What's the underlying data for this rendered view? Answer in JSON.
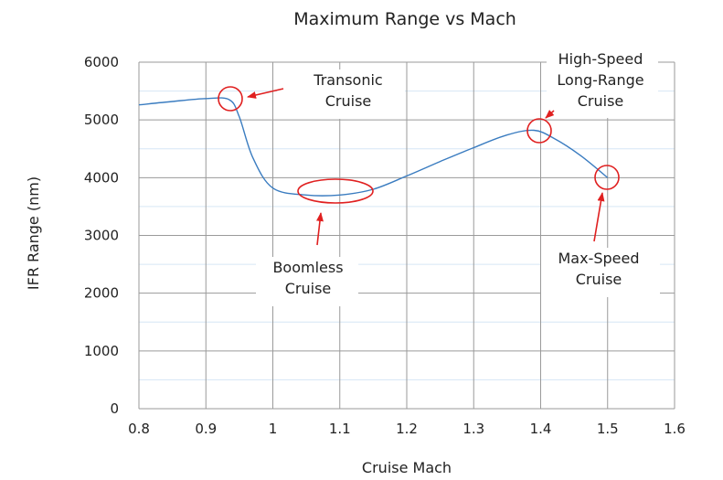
{
  "chart_data": {
    "type": "line",
    "title": "Maximum Range vs Mach",
    "xlabel": "Cruise Mach",
    "ylabel": "IFR Range (nm)",
    "xlim": [
      0.8,
      1.6
    ],
    "ylim": [
      0,
      6000
    ],
    "x_ticks": [
      "0.8",
      "0.9",
      "1",
      "1.1",
      "1.2",
      "1.3",
      "1.4",
      "1.5",
      "1.6"
    ],
    "y_ticks": [
      "0",
      "1000",
      "2000",
      "3000",
      "4000",
      "5000",
      "6000"
    ],
    "grid": true,
    "series": [
      {
        "color": "#3a7cc0",
        "x": [
          0.8,
          0.85,
          0.9,
          0.935,
          0.95,
          0.97,
          1.0,
          1.05,
          1.1,
          1.15,
          1.2,
          1.25,
          1.3,
          1.35,
          1.39,
          1.42,
          1.46,
          1.5
        ],
        "y": [
          5260,
          5320,
          5370,
          5350,
          5050,
          4350,
          3820,
          3700,
          3700,
          3800,
          4030,
          4280,
          4520,
          4740,
          4820,
          4680,
          4380,
          4000
        ]
      }
    ],
    "annotations": [
      {
        "lines": [
          "Transonic",
          "Cruise"
        ],
        "marker": "circle",
        "point": [
          0.935,
          5350
        ]
      },
      {
        "lines": [
          "Boomless",
          "Cruise"
        ],
        "marker": "ellipse",
        "point": [
          1.1,
          3720
        ]
      },
      {
        "lines": [
          "High-Speed",
          "Long-Range",
          "Cruise"
        ],
        "marker": "circle",
        "point": [
          1.395,
          4800
        ]
      },
      {
        "lines": [
          "Max-Speed",
          "Cruise"
        ],
        "marker": "circle",
        "point": [
          1.5,
          4000
        ]
      }
    ],
    "marker_color": "#e02020"
  }
}
